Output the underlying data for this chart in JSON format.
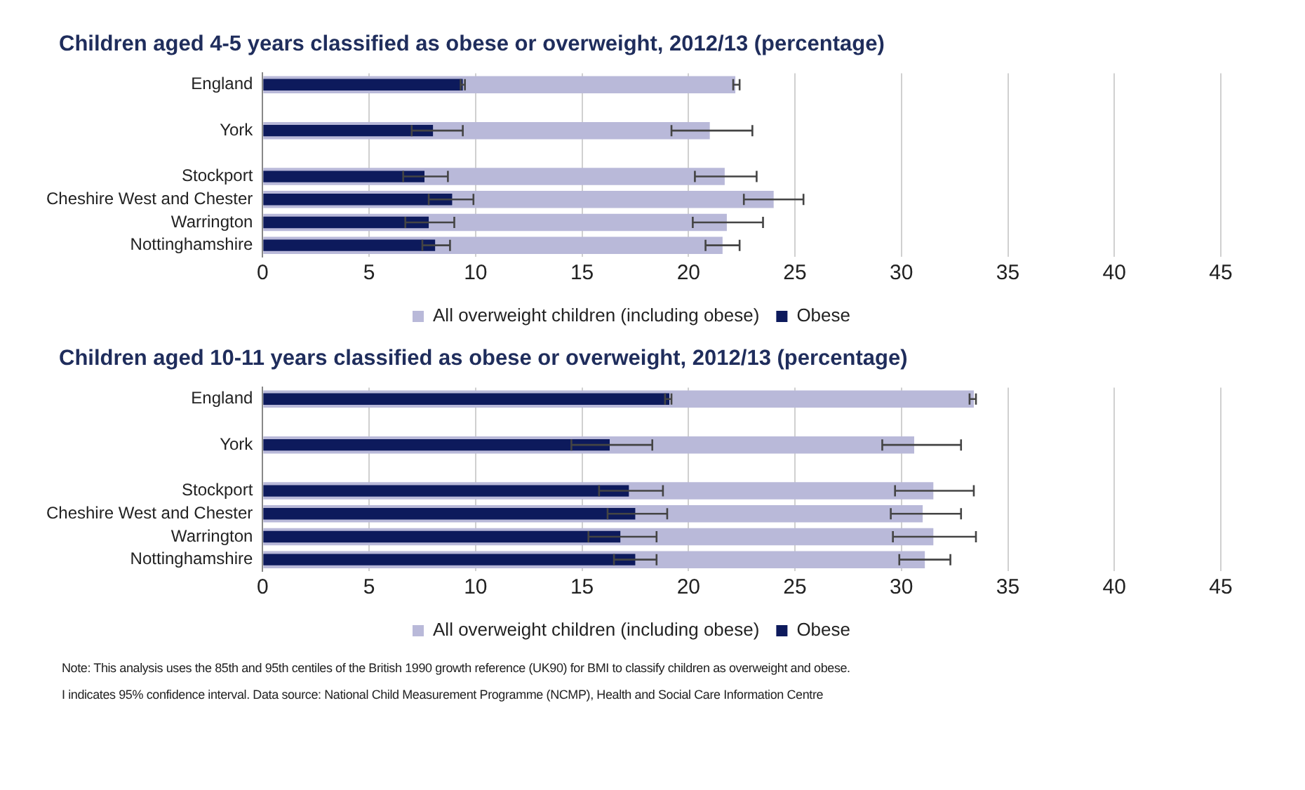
{
  "chart_data": [
    {
      "type": "bar",
      "title": "Children aged 4-5 years classified as obese or overweight, 2012/13 (percentage)",
      "orientation": "horizontal",
      "categories": [
        "England",
        null,
        "York",
        null,
        "Stockport",
        "Cheshire West and Chester",
        "Warrington",
        "Nottinghamshire"
      ],
      "series": [
        {
          "name": "All overweight children (including obese)",
          "color": "#b9b9d9",
          "values": [
            22.2,
            null,
            21.0,
            null,
            21.7,
            24.0,
            21.8,
            21.6
          ],
          "errors": [
            [
              22.1,
              22.4
            ],
            null,
            [
              19.2,
              23.0
            ],
            null,
            [
              20.3,
              23.2
            ],
            [
              22.6,
              25.4
            ],
            [
              20.2,
              23.5
            ],
            [
              20.8,
              22.4
            ]
          ]
        },
        {
          "name": "Obese",
          "color": "#0d1a5c",
          "values": [
            9.4,
            null,
            8.0,
            null,
            7.6,
            8.9,
            7.8,
            8.1
          ],
          "errors": [
            [
              9.3,
              9.5
            ],
            null,
            [
              7.0,
              9.4
            ],
            null,
            [
              6.6,
              8.7
            ],
            [
              7.8,
              9.9
            ],
            [
              6.7,
              9.0
            ],
            [
              7.5,
              8.8
            ]
          ]
        }
      ],
      "xlim": [
        0,
        45
      ],
      "xticks": [
        0,
        5,
        10,
        15,
        20,
        25,
        30,
        35,
        40,
        45
      ],
      "grid": "x",
      "legend": "bottom"
    },
    {
      "type": "bar",
      "title": "Children aged 10-11 years classified as obese or overweight, 2012/13 (percentage)",
      "orientation": "horizontal",
      "categories": [
        "England",
        null,
        "York",
        null,
        "Stockport",
        "Cheshire West and Chester",
        "Warrington",
        "Nottinghamshire"
      ],
      "series": [
        {
          "name": "All overweight children (including obese)",
          "color": "#b9b9d9",
          "values": [
            33.4,
            null,
            30.6,
            null,
            31.5,
            31.0,
            31.5,
            31.1
          ],
          "errors": [
            [
              33.2,
              33.5
            ],
            null,
            [
              29.1,
              32.8
            ],
            null,
            [
              29.7,
              33.4
            ],
            [
              29.5,
              32.8
            ],
            [
              29.6,
              33.5
            ],
            [
              29.9,
              32.3
            ]
          ]
        },
        {
          "name": "Obese",
          "color": "#0d1a5c",
          "values": [
            19.1,
            null,
            16.3,
            null,
            17.2,
            17.5,
            16.8,
            17.5
          ],
          "errors": [
            [
              18.9,
              19.2
            ],
            null,
            [
              14.5,
              18.3
            ],
            null,
            [
              15.8,
              18.8
            ],
            [
              16.2,
              19.0
            ],
            [
              15.3,
              18.5
            ],
            [
              16.5,
              18.5
            ]
          ]
        }
      ],
      "xlim": [
        0,
        45
      ],
      "xticks": [
        0,
        5,
        10,
        15,
        20,
        25,
        30,
        35,
        40,
        45
      ],
      "grid": "x",
      "legend": "bottom",
      "annotations": [
        "Note: This analysis uses the 85th and 95th centiles of the British 1990 growth reference (UK90) for BMI to classify children as overweight and obese.",
        "I indicates 95% confidence interval.   Data source: National Child Measurement Programme (NCMP), Health and Social Care Information Centre"
      ]
    }
  ]
}
